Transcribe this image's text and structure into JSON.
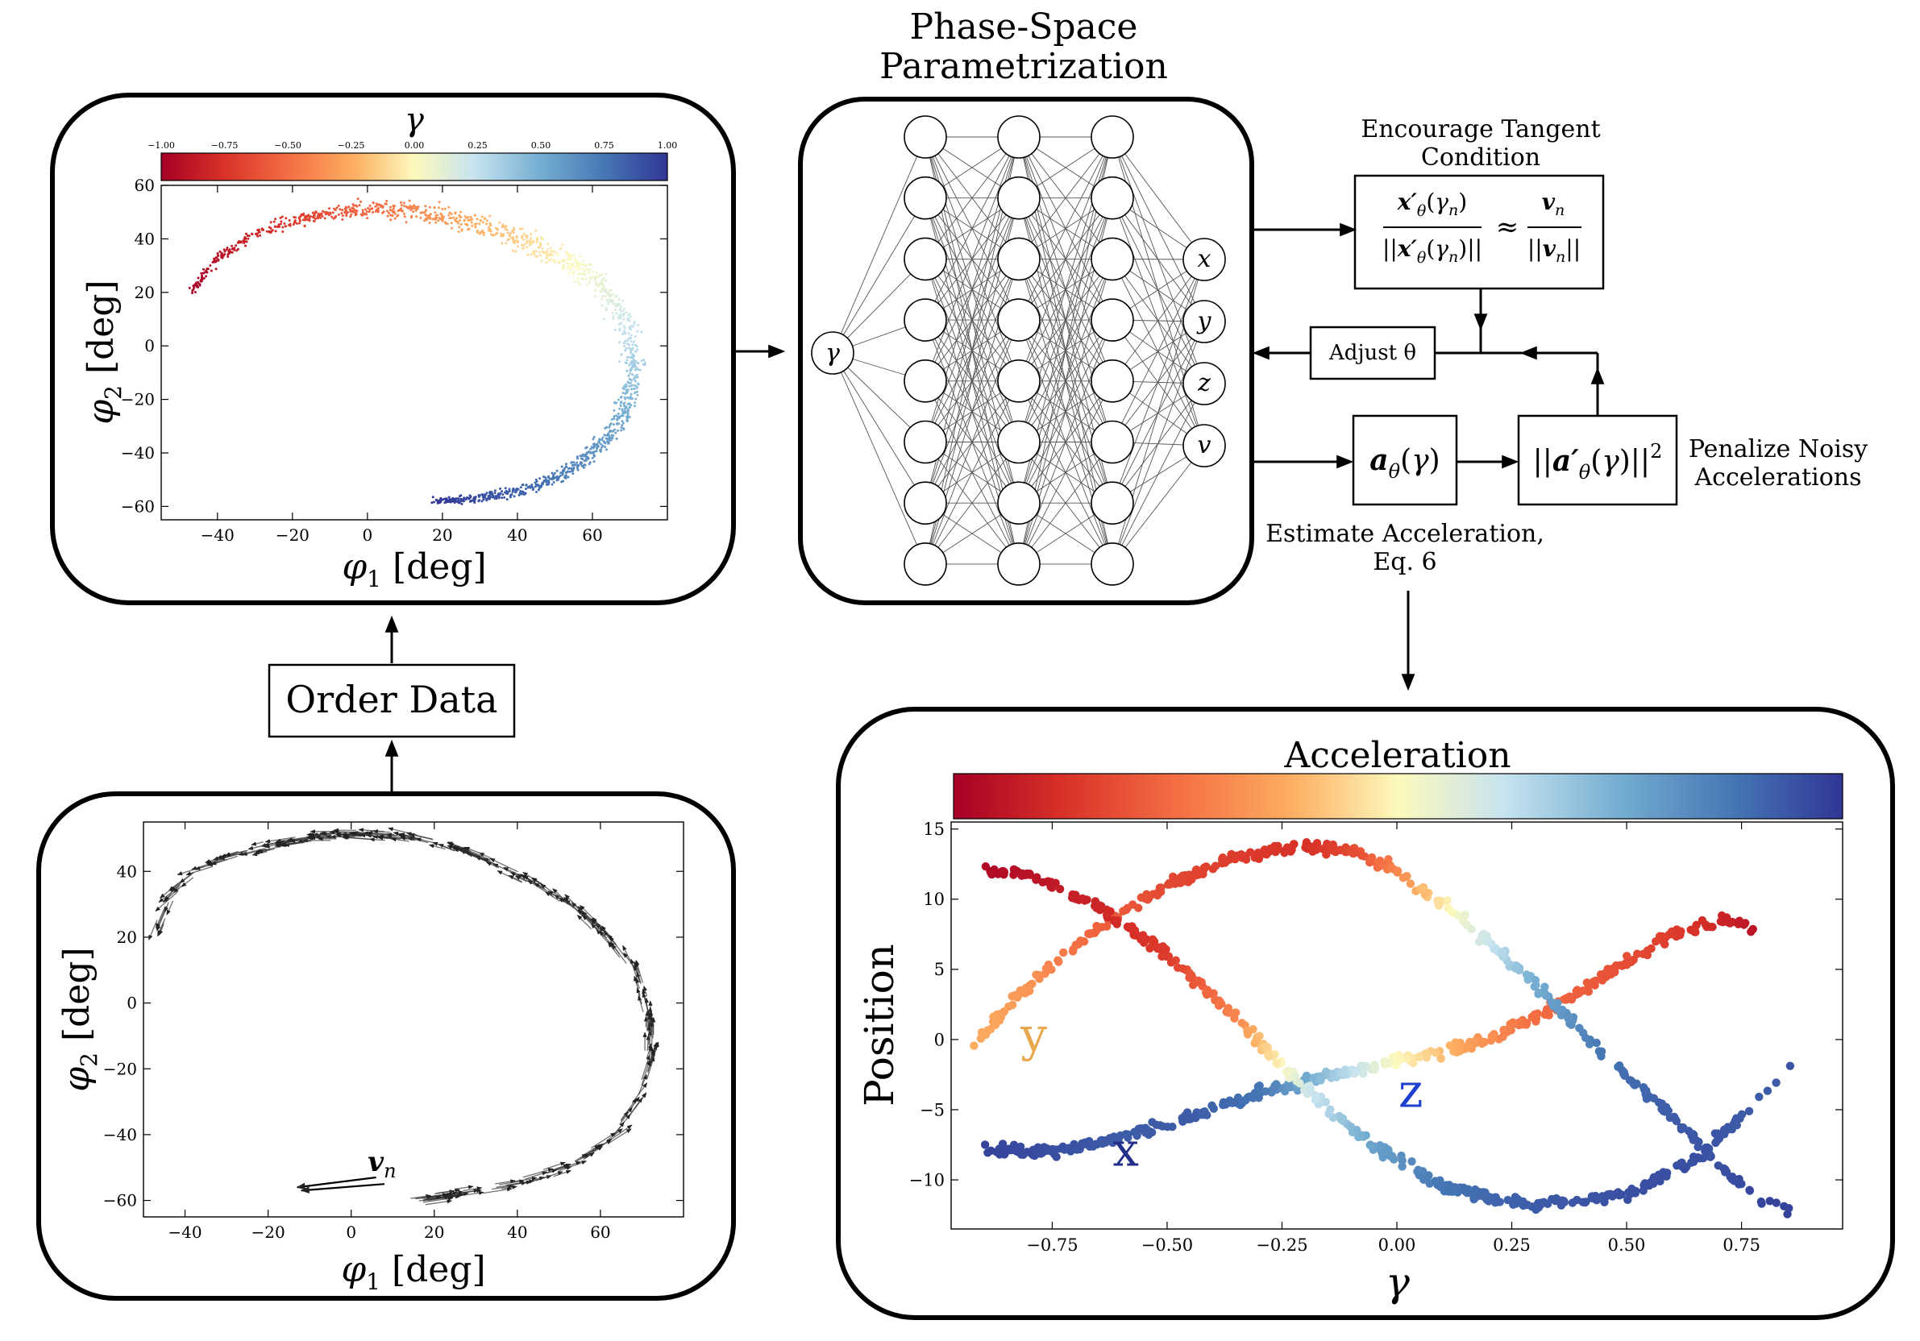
{
  "title": {
    "line1": "Phase-Space",
    "line2": "Parametrization"
  },
  "order_data": "Order Data",
  "tangent": {
    "heading1": "Encourage Tangent",
    "heading2": "Condition",
    "approx": "≈"
  },
  "adjust": "Adjust θ",
  "accel_box": "a",
  "penalty": {
    "line1": "Penalize Noisy",
    "line2": "Accelerations"
  },
  "estimate": {
    "line1": "Estimate Acceleration,",
    "line2": "Eq. 6"
  },
  "network": {
    "input": "γ",
    "outputs": [
      "x",
      "y",
      "z",
      "v"
    ],
    "hidden_layers": 3,
    "hidden_nodes": 8
  },
  "colors": {
    "red": "#a50026",
    "yellow": "#fdf9bd",
    "blue": "#313695"
  },
  "chart_data": [
    {
      "type": "scatter",
      "name": "stream-colored-by-gamma",
      "title": "γ",
      "colorbar": {
        "label": "γ",
        "range": [
          -1.0,
          1.0
        ],
        "ticks": [
          "−1.00",
          "−0.75",
          "−0.50",
          "−0.25",
          "0.00",
          "0.25",
          "0.50",
          "0.75",
          "1.00"
        ]
      },
      "xlabel": "φ1 [deg]",
      "ylabel": "φ2 [deg]",
      "xlim": [
        -55,
        80
      ],
      "ylim": [
        -65,
        60
      ],
      "xticks": [
        -40,
        -20,
        0,
        20,
        40,
        60
      ],
      "yticks": [
        60,
        40,
        20,
        0,
        -20,
        -40,
        -60
      ],
      "track": [
        [
          -47,
          20
        ],
        [
          -40,
          33
        ],
        [
          -30,
          42
        ],
        [
          -20,
          47
        ],
        [
          -10,
          50
        ],
        [
          0,
          51
        ],
        [
          10,
          51
        ],
        [
          20,
          49
        ],
        [
          30,
          45
        ],
        [
          40,
          40
        ],
        [
          50,
          34
        ],
        [
          58,
          28
        ],
        [
          65,
          18
        ],
        [
          69,
          8
        ],
        [
          71,
          -4
        ],
        [
          70,
          -16
        ],
        [
          67,
          -28
        ],
        [
          60,
          -40
        ],
        [
          52,
          -48
        ],
        [
          42,
          -54
        ],
        [
          30,
          -57
        ],
        [
          18,
          -58
        ]
      ]
    },
    {
      "type": "quiver",
      "name": "stream-velocity-arrows",
      "xlabel": "φ1 [deg]",
      "ylabel": "φ2 [deg]",
      "annotation": "v_n",
      "xlim": [
        -50,
        80
      ],
      "ylim": [
        -65,
        55
      ],
      "xticks": [
        -40,
        -20,
        0,
        20,
        40,
        60
      ],
      "yticks": [
        40,
        20,
        0,
        -20,
        -40,
        -60
      ],
      "track": [
        [
          -47,
          20
        ],
        [
          -42,
          35
        ],
        [
          -35,
          42
        ],
        [
          -25,
          46
        ],
        [
          -15,
          49
        ],
        [
          -5,
          51
        ],
        [
          5,
          51
        ],
        [
          15,
          50
        ],
        [
          25,
          47
        ],
        [
          35,
          42
        ],
        [
          45,
          36
        ],
        [
          55,
          28
        ],
        [
          63,
          18
        ],
        [
          69,
          8
        ],
        [
          72,
          -5
        ],
        [
          72,
          -18
        ],
        [
          69,
          -30
        ],
        [
          62,
          -42
        ],
        [
          52,
          -50
        ],
        [
          40,
          -55
        ],
        [
          25,
          -58
        ],
        [
          14,
          -60
        ]
      ]
    },
    {
      "type": "scatter",
      "name": "position-vs-gamma",
      "title": "Acceleration",
      "xlabel": "γ",
      "ylabel": "Position",
      "xlim": [
        -0.97,
        0.97
      ],
      "ylim": [
        -13.5,
        15.5
      ],
      "xticks": [
        "−0.75",
        "−0.50",
        "−0.25",
        "0.00",
        "0.25",
        "0.50",
        "0.75"
      ],
      "yticks": [
        "15",
        "10",
        "5",
        "0",
        "−5",
        "−10"
      ],
      "series": [
        {
          "name": "x",
          "label": "x",
          "label_color": "#232f8a",
          "gamma": [
            -0.9,
            -0.75,
            -0.6,
            -0.45,
            -0.3,
            -0.15,
            0.0,
            0.15,
            0.3,
            0.45,
            0.6,
            0.7,
            0.78
          ],
          "values": [
            -7.8,
            -8.0,
            -7.0,
            -5.5,
            -3.8,
            -2.6,
            -1.6,
            -0.5,
            1.5,
            4.5,
            7.5,
            8.5,
            8.0
          ],
          "accel": [
            0.95,
            0.9,
            0.85,
            0.85,
            0.75,
            0.4,
            0.0,
            -0.3,
            -0.5,
            -0.6,
            -0.7,
            -0.8,
            -0.9
          ]
        },
        {
          "name": "y",
          "label": "y",
          "label_color": "#e8a850",
          "gamma": [
            -0.92,
            -0.8,
            -0.65,
            -0.5,
            -0.35,
            -0.2,
            -0.1,
            0.0,
            0.15,
            0.3,
            0.45,
            0.6,
            0.72,
            0.8,
            0.88
          ],
          "values": [
            -0.5,
            4.0,
            8.0,
            11.0,
            13.0,
            13.8,
            13.5,
            12.0,
            8.5,
            4.0,
            -1.0,
            -5.5,
            -9.5,
            -11.5,
            -12.5
          ],
          "accel": [
            -0.25,
            -0.35,
            -0.55,
            -0.65,
            -0.7,
            -0.75,
            -0.65,
            -0.4,
            0.1,
            0.5,
            0.75,
            0.85,
            0.9,
            0.95,
            0.95
          ]
        },
        {
          "name": "z",
          "label": "z",
          "label_color": "#1d3fd0",
          "gamma": [
            -0.9,
            -0.8,
            -0.65,
            -0.5,
            -0.35,
            -0.2,
            -0.05,
            0.1,
            0.3,
            0.5,
            0.65,
            0.75,
            0.82,
            0.88
          ],
          "values": [
            12.0,
            11.8,
            9.5,
            6.0,
            1.5,
            -3.5,
            -7.5,
            -10.5,
            -11.8,
            -11.0,
            -8.5,
            -5.5,
            -3.0,
            -1.0
          ],
          "accel": [
            -0.95,
            -0.9,
            -0.8,
            -0.7,
            -0.4,
            0.2,
            0.55,
            0.75,
            0.85,
            0.9,
            0.9,
            0.85,
            0.85,
            0.9
          ]
        }
      ]
    }
  ]
}
